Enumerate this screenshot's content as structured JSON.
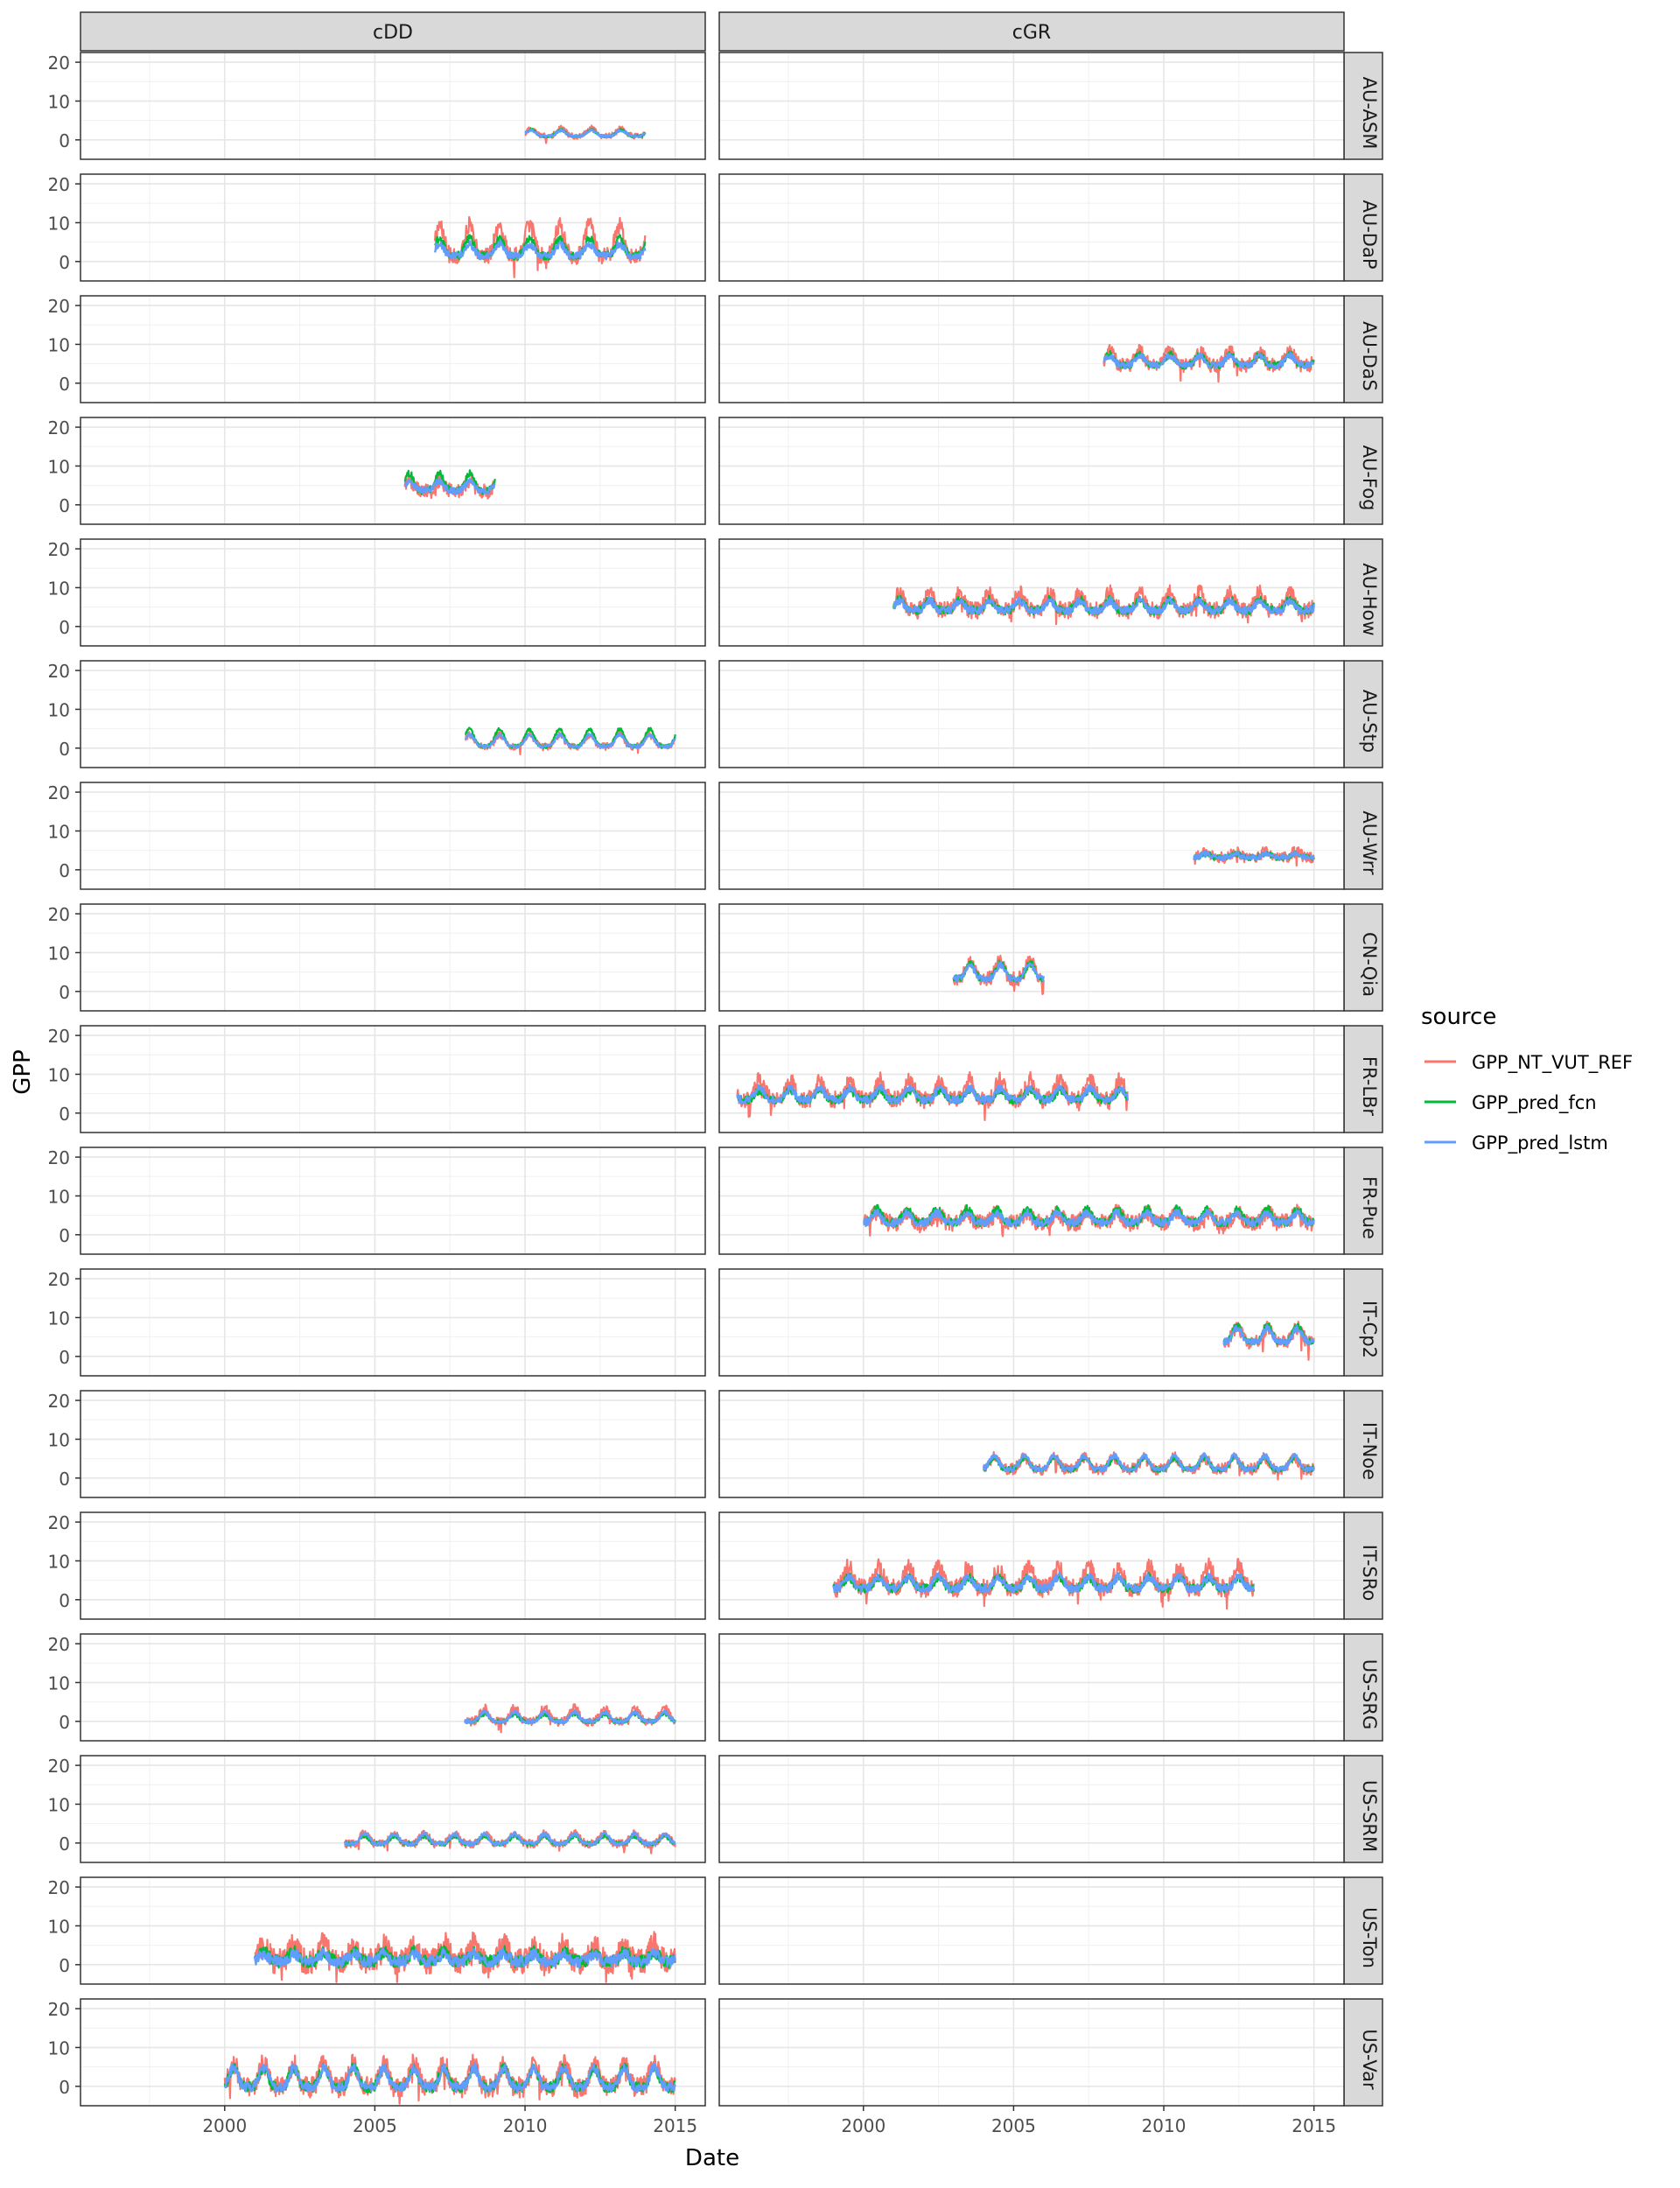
{
  "chart_data": {
    "type": "line",
    "xlabel": "Date",
    "ylabel": "GPP",
    "x_ticks": [
      2000,
      2005,
      2010,
      2015
    ],
    "x_range": [
      1995.2,
      2016.0
    ],
    "y_ticks": [
      0,
      10,
      20
    ],
    "y_range": [
      -5,
      22.5
    ],
    "grid": true,
    "columns": [
      "cDD",
      "cGR"
    ],
    "rows": [
      "AU-ASM",
      "AU-DaP",
      "AU-DaS",
      "AU-Fog",
      "AU-How",
      "AU-Stp",
      "AU-Wrr",
      "CN-Qia",
      "FR-LBr",
      "FR-Pue",
      "IT-Cp2",
      "IT-Noe",
      "IT-SRo",
      "US-SRG",
      "US-SRM",
      "US-Ton",
      "US-Var"
    ],
    "legend": {
      "title": "source",
      "position": "right",
      "entries": [
        {
          "name": "GPP_NT_VUT_REF",
          "color": "#F8766D"
        },
        {
          "name": "GPP_pred_fcn",
          "color": "#00BA38"
        },
        {
          "name": "GPP_pred_lstm",
          "color": "#619CFF"
        }
      ]
    },
    "panels": [
      {
        "row": "AU-ASM",
        "column": "cDD",
        "x_start": 2010.0,
        "x_end": 2014.0,
        "mean": 1.5,
        "amplitude": 1.5,
        "ref_amplitude": 2.0,
        "fcn_amplitude": 1.6,
        "noise": 0.4,
        "peak_phase": 0.2
      },
      {
        "row": "AU-DaP",
        "column": "cDD",
        "x_start": 2007.0,
        "x_end": 2014.0,
        "mean": 2.5,
        "amplitude": 3.0,
        "ref_amplitude": 8.0,
        "fcn_amplitude": 4.5,
        "noise": 1.2,
        "peak_phase": 0.15
      },
      {
        "row": "AU-DaS",
        "column": "cGR",
        "x_start": 2008.0,
        "x_end": 2015.0,
        "mean": 5.5,
        "amplitude": 2.5,
        "ref_amplitude": 3.5,
        "fcn_amplitude": 2.8,
        "noise": 1.0,
        "peak_phase": 0.2
      },
      {
        "row": "AU-Fog",
        "column": "cDD",
        "x_start": 2006.0,
        "x_end": 2009.0,
        "mean": 4.5,
        "amplitude": 2.5,
        "ref_amplitude": 2.5,
        "fcn_amplitude": 4.5,
        "noise": 1.0,
        "peak_phase": 0.15
      },
      {
        "row": "AU-How",
        "column": "cGR",
        "x_start": 2001.0,
        "x_end": 2015.0,
        "mean": 5.0,
        "amplitude": 2.5,
        "ref_amplitude": 4.5,
        "fcn_amplitude": 2.8,
        "noise": 1.2,
        "peak_phase": 0.2
      },
      {
        "row": "AU-Stp",
        "column": "cDD",
        "x_start": 2008.0,
        "x_end": 2015.0,
        "mean": 1.5,
        "amplitude": 3.0,
        "ref_amplitude": 3.0,
        "fcn_amplitude": 4.5,
        "noise": 0.5,
        "peak_phase": 0.15
      },
      {
        "row": "AU-Wrr",
        "column": "cGR",
        "x_start": 2011.0,
        "x_end": 2015.0,
        "mean": 3.5,
        "amplitude": 1.0,
        "ref_amplitude": 1.5,
        "fcn_amplitude": 1.0,
        "noise": 0.8,
        "peak_phase": 0.4
      },
      {
        "row": "CN-Qia",
        "column": "cGR",
        "x_start": 2003.0,
        "x_end": 2006.0,
        "mean": 4.5,
        "amplitude": 3.5,
        "ref_amplitude": 4.5,
        "fcn_amplitude": 4.0,
        "noise": 1.0,
        "peak_phase": 0.55
      },
      {
        "row": "FR-LBr",
        "column": "cGR",
        "x_start": 1995.8,
        "x_end": 2008.8,
        "mean": 4.5,
        "amplitude": 3.0,
        "ref_amplitude": 5.0,
        "fcn_amplitude": 2.5,
        "noise": 1.2,
        "peak_phase": 0.55
      },
      {
        "row": "FR-Pue",
        "column": "cGR",
        "x_start": 2000.0,
        "x_end": 2015.0,
        "mean": 4.0,
        "amplitude": 2.5,
        "ref_amplitude": 2.5,
        "fcn_amplitude": 3.5,
        "noise": 1.2,
        "peak_phase": 0.45
      },
      {
        "row": "IT-Cp2",
        "column": "cGR",
        "x_start": 2012.0,
        "x_end": 2015.0,
        "mean": 5.0,
        "amplitude": 3.5,
        "ref_amplitude": 3.5,
        "fcn_amplitude": 4.0,
        "noise": 1.0,
        "peak_phase": 0.45
      },
      {
        "row": "IT-Noe",
        "column": "cGR",
        "x_start": 2004.0,
        "x_end": 2015.0,
        "mean": 3.5,
        "amplitude": 3.5,
        "ref_amplitude": 3.0,
        "fcn_amplitude": 3.0,
        "noise": 0.8,
        "peak_phase": 0.35
      },
      {
        "row": "IT-SRo",
        "column": "cGR",
        "x_start": 1999.0,
        "x_end": 2013.0,
        "mean": 4.0,
        "amplitude": 3.0,
        "ref_amplitude": 5.5,
        "fcn_amplitude": 2.8,
        "noise": 1.3,
        "peak_phase": 0.5
      },
      {
        "row": "US-SRG",
        "column": "cDD",
        "x_start": 2008.0,
        "x_end": 2015.0,
        "mean": 0.8,
        "amplitude": 2.5,
        "ref_amplitude": 3.5,
        "fcn_amplitude": 2.0,
        "noise": 0.6,
        "peak_phase": 0.65
      },
      {
        "row": "US-SRM",
        "column": "cDD",
        "x_start": 2004.0,
        "x_end": 2015.0,
        "mean": 0.7,
        "amplitude": 2.5,
        "ref_amplitude": 2.5,
        "fcn_amplitude": 2.0,
        "noise": 0.6,
        "peak_phase": 0.65
      },
      {
        "row": "US-Ton",
        "column": "cDD",
        "x_start": 2001.0,
        "x_end": 2015.0,
        "mean": 1.5,
        "amplitude": 2.0,
        "ref_amplitude": 4.5,
        "fcn_amplitude": 2.5,
        "noise": 1.8,
        "peak_phase": 0.3
      },
      {
        "row": "US-Var",
        "column": "cDD",
        "x_start": 2000.0,
        "x_end": 2015.0,
        "mean": 1.5,
        "amplitude": 5.0,
        "ref_amplitude": 6.0,
        "fcn_amplitude": 5.0,
        "noise": 1.5,
        "peak_phase": 0.3
      }
    ]
  }
}
